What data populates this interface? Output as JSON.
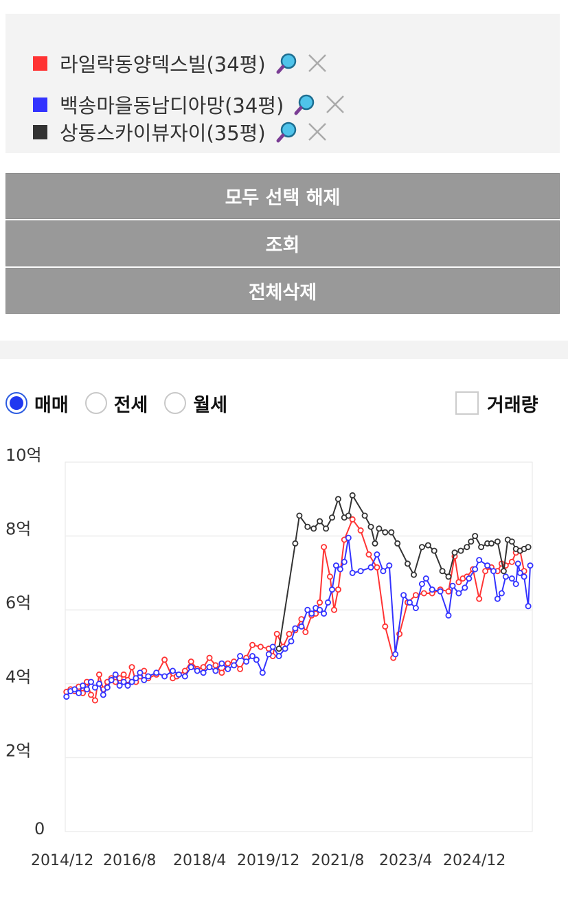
{
  "comparison": {
    "items": [
      {
        "label": "라일락동양덱스빌(34평)",
        "color": "#ff3333"
      },
      {
        "label": "백송마을동남디아망(34평)",
        "color": "#3333ff"
      },
      {
        "label": "상동스카이뷰자이(35평)",
        "color": "#333333"
      }
    ]
  },
  "buttons": {
    "deselect_all": "모두 선택 해제",
    "search": "조회",
    "delete_all": "전체삭제"
  },
  "trade_type": {
    "options": [
      "매매",
      "전세",
      "월세"
    ],
    "selected": "매매"
  },
  "volume_checkbox": {
    "label": "거래량",
    "checked": false
  },
  "chart_data": {
    "type": "line",
    "y_ticks": [
      "0",
      "2억",
      "4억",
      "6억",
      "8억",
      "10억"
    ],
    "ylim": [
      0,
      10
    ],
    "y_unit": "억",
    "x_ticks": [
      "2014/12",
      "2016/8",
      "2018/4",
      "2019/12",
      "2021/8",
      "2023/4",
      "2024/12"
    ],
    "x_range": [
      2014.92,
      2025.92
    ],
    "grid": true,
    "series": [
      {
        "name": "라일락동양덱스빌(34평)",
        "color": "#ff3333",
        "points": [
          [
            2014.95,
            3.78
          ],
          [
            2015.05,
            3.85
          ],
          [
            2015.15,
            3.8
          ],
          [
            2015.25,
            3.92
          ],
          [
            2015.35,
            3.75
          ],
          [
            2015.45,
            4.05
          ],
          [
            2015.55,
            3.7
          ],
          [
            2015.65,
            3.55
          ],
          [
            2015.75,
            4.25
          ],
          [
            2015.85,
            3.85
          ],
          [
            2015.95,
            4.05
          ],
          [
            2016.05,
            4.15
          ],
          [
            2016.15,
            4.05
          ],
          [
            2016.25,
            4.15
          ],
          [
            2016.35,
            4.25
          ],
          [
            2016.45,
            4.1
          ],
          [
            2016.55,
            4.45
          ],
          [
            2016.65,
            4.05
          ],
          [
            2016.75,
            4.2
          ],
          [
            2016.85,
            4.35
          ],
          [
            2016.95,
            4.15
          ],
          [
            2017.15,
            4.25
          ],
          [
            2017.35,
            4.65
          ],
          [
            2017.55,
            4.15
          ],
          [
            2017.65,
            4.2
          ],
          [
            2017.85,
            4.35
          ],
          [
            2018.0,
            4.6
          ],
          [
            2018.15,
            4.4
          ],
          [
            2018.3,
            4.45
          ],
          [
            2018.45,
            4.7
          ],
          [
            2018.6,
            4.5
          ],
          [
            2018.75,
            4.3
          ],
          [
            2018.9,
            4.55
          ],
          [
            2019.05,
            4.6
          ],
          [
            2019.2,
            4.4
          ],
          [
            2019.35,
            4.7
          ],
          [
            2019.5,
            5.05
          ],
          [
            2019.7,
            5.0
          ],
          [
            2019.9,
            4.95
          ],
          [
            2020.0,
            4.75
          ],
          [
            2020.1,
            5.35
          ],
          [
            2020.25,
            5.0
          ],
          [
            2020.4,
            5.35
          ],
          [
            2020.55,
            5.45
          ],
          [
            2020.7,
            5.75
          ],
          [
            2020.8,
            5.4
          ],
          [
            2020.95,
            5.85
          ],
          [
            2021.05,
            5.9
          ],
          [
            2021.15,
            6.2
          ],
          [
            2021.25,
            7.7
          ],
          [
            2021.4,
            6.9
          ],
          [
            2021.5,
            6.0
          ],
          [
            2021.6,
            6.55
          ],
          [
            2021.75,
            7.9
          ],
          [
            2021.95,
            8.45
          ],
          [
            2022.15,
            8.15
          ],
          [
            2022.35,
            7.5
          ],
          [
            2022.55,
            7.15
          ],
          [
            2022.75,
            5.55
          ],
          [
            2022.95,
            4.7
          ],
          [
            2023.1,
            5.35
          ],
          [
            2023.3,
            6.2
          ],
          [
            2023.5,
            6.4
          ],
          [
            2023.7,
            6.45
          ],
          [
            2023.9,
            6.45
          ],
          [
            2024.1,
            6.55
          ],
          [
            2024.3,
            6.5
          ],
          [
            2024.45,
            7.45
          ],
          [
            2024.55,
            6.75
          ],
          [
            2024.65,
            6.85
          ],
          [
            2024.75,
            6.9
          ],
          [
            2024.9,
            7.1
          ],
          [
            2025.05,
            6.3
          ],
          [
            2025.2,
            7.05
          ],
          [
            2025.35,
            7.15
          ],
          [
            2025.5,
            7.05
          ],
          [
            2025.6,
            7.25
          ],
          [
            2025.7,
            7.2
          ],
          [
            2025.85,
            7.3
          ],
          [
            2025.95,
            7.55
          ],
          [
            2026.05,
            7.6
          ],
          [
            2026.15,
            7.05
          ]
        ]
      },
      {
        "name": "백송마을동남디아망(34평)",
        "color": "#3333ff",
        "points": [
          [
            2014.95,
            3.65
          ],
          [
            2015.05,
            3.8
          ],
          [
            2015.15,
            3.85
          ],
          [
            2015.25,
            3.75
          ],
          [
            2015.35,
            3.95
          ],
          [
            2015.45,
            3.85
          ],
          [
            2015.55,
            4.05
          ],
          [
            2015.65,
            3.9
          ],
          [
            2015.75,
            4.0
          ],
          [
            2015.85,
            3.7
          ],
          [
            2015.95,
            3.9
          ],
          [
            2016.05,
            4.1
          ],
          [
            2016.15,
            4.25
          ],
          [
            2016.25,
            3.95
          ],
          [
            2016.35,
            4.05
          ],
          [
            2016.45,
            3.95
          ],
          [
            2016.55,
            4.05
          ],
          [
            2016.65,
            4.15
          ],
          [
            2016.75,
            4.3
          ],
          [
            2016.85,
            4.1
          ],
          [
            2016.95,
            4.2
          ],
          [
            2017.15,
            4.3
          ],
          [
            2017.35,
            4.2
          ],
          [
            2017.55,
            4.35
          ],
          [
            2017.7,
            4.25
          ],
          [
            2017.85,
            4.2
          ],
          [
            2018.0,
            4.45
          ],
          [
            2018.15,
            4.35
          ],
          [
            2018.3,
            4.3
          ],
          [
            2018.45,
            4.45
          ],
          [
            2018.6,
            4.35
          ],
          [
            2018.75,
            4.55
          ],
          [
            2018.9,
            4.4
          ],
          [
            2019.05,
            4.5
          ],
          [
            2019.2,
            4.75
          ],
          [
            2019.35,
            4.6
          ],
          [
            2019.5,
            4.75
          ],
          [
            2019.6,
            4.65
          ],
          [
            2019.75,
            4.3
          ],
          [
            2019.9,
            4.8
          ],
          [
            2020.0,
            5.0
          ],
          [
            2020.15,
            4.75
          ],
          [
            2020.3,
            4.95
          ],
          [
            2020.45,
            5.15
          ],
          [
            2020.55,
            5.5
          ],
          [
            2020.7,
            5.55
          ],
          [
            2020.85,
            6.0
          ],
          [
            2020.95,
            5.9
          ],
          [
            2021.05,
            6.05
          ],
          [
            2021.15,
            6.0
          ],
          [
            2021.25,
            5.9
          ],
          [
            2021.35,
            6.2
          ],
          [
            2021.45,
            6.55
          ],
          [
            2021.55,
            7.2
          ],
          [
            2021.65,
            7.1
          ],
          [
            2021.75,
            7.3
          ],
          [
            2021.85,
            7.95
          ],
          [
            2021.95,
            7.0
          ],
          [
            2022.15,
            7.05
          ],
          [
            2022.4,
            7.15
          ],
          [
            2022.55,
            7.5
          ],
          [
            2022.7,
            7.05
          ],
          [
            2022.85,
            7.2
          ],
          [
            2023.0,
            4.8
          ],
          [
            2023.2,
            6.4
          ],
          [
            2023.35,
            6.2
          ],
          [
            2023.5,
            6.05
          ],
          [
            2023.65,
            6.7
          ],
          [
            2023.75,
            6.85
          ],
          [
            2023.9,
            6.55
          ],
          [
            2024.1,
            6.5
          ],
          [
            2024.3,
            5.85
          ],
          [
            2024.4,
            6.65
          ],
          [
            2024.55,
            6.45
          ],
          [
            2024.7,
            6.6
          ],
          [
            2024.8,
            6.85
          ],
          [
            2024.95,
            7.1
          ],
          [
            2025.05,
            7.35
          ],
          [
            2025.25,
            7.2
          ],
          [
            2025.4,
            7.05
          ],
          [
            2025.5,
            6.3
          ],
          [
            2025.6,
            6.45
          ],
          [
            2025.7,
            6.9
          ],
          [
            2025.85,
            6.85
          ],
          [
            2025.95,
            6.7
          ],
          [
            2026.0,
            7.25
          ],
          [
            2026.05,
            7.0
          ],
          [
            2026.15,
            6.9
          ],
          [
            2026.25,
            6.1
          ],
          [
            2026.3,
            7.2
          ]
        ]
      },
      {
        "name": "상동스카이뷰자이(35평)",
        "color": "#333333",
        "points": [
          [
            2020.15,
            4.95
          ],
          [
            2020.55,
            7.8
          ],
          [
            2020.65,
            8.55
          ],
          [
            2020.85,
            8.25
          ],
          [
            2021.0,
            8.2
          ],
          [
            2021.15,
            8.4
          ],
          [
            2021.3,
            8.2
          ],
          [
            2021.45,
            8.5
          ],
          [
            2021.6,
            9.0
          ],
          [
            2021.75,
            8.5
          ],
          [
            2021.85,
            8.55
          ],
          [
            2021.95,
            9.1
          ],
          [
            2022.25,
            8.55
          ],
          [
            2022.4,
            8.25
          ],
          [
            2022.5,
            7.8
          ],
          [
            2022.6,
            8.2
          ],
          [
            2022.75,
            8.1
          ],
          [
            2022.9,
            8.1
          ],
          [
            2023.05,
            7.8
          ],
          [
            2023.3,
            7.25
          ],
          [
            2023.45,
            6.95
          ],
          [
            2023.65,
            7.7
          ],
          [
            2023.8,
            7.75
          ],
          [
            2023.95,
            7.6
          ],
          [
            2024.15,
            7.05
          ],
          [
            2024.3,
            6.9
          ],
          [
            2024.45,
            7.55
          ],
          [
            2024.6,
            7.6
          ],
          [
            2024.75,
            7.7
          ],
          [
            2024.85,
            7.85
          ],
          [
            2024.95,
            8.0
          ],
          [
            2025.1,
            7.7
          ],
          [
            2025.25,
            7.8
          ],
          [
            2025.35,
            7.8
          ],
          [
            2025.5,
            7.85
          ],
          [
            2025.65,
            7.05
          ],
          [
            2025.75,
            7.9
          ],
          [
            2025.85,
            7.85
          ],
          [
            2025.95,
            7.65
          ],
          [
            2026.05,
            7.6
          ],
          [
            2026.15,
            7.65
          ],
          [
            2026.25,
            7.7
          ]
        ]
      }
    ]
  }
}
